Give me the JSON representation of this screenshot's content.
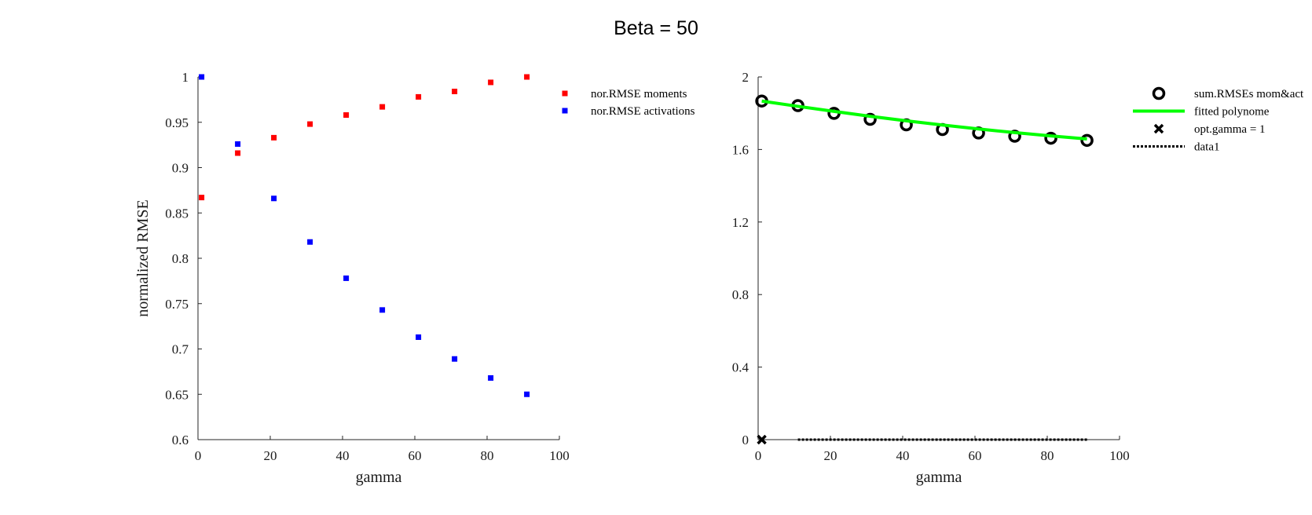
{
  "figure": {
    "suptitle": "Beta = 50"
  },
  "colors": {
    "moments": "#ff0000",
    "activations": "#0000ff",
    "fit": "#00ff00",
    "axis": "#262626"
  },
  "chart_data": [
    {
      "type": "scatter",
      "title": "",
      "xlabel": "gamma",
      "ylabel": "normalized RMSE",
      "xlim": [
        0,
        100
      ],
      "ylim": [
        0.6,
        1
      ],
      "xticks": [
        0,
        20,
        40,
        60,
        80,
        100
      ],
      "xtick_labels": [
        "0",
        "20",
        "40",
        "60",
        "80",
        "100"
      ],
      "yticks": [
        0.6,
        0.65,
        0.7,
        0.75,
        0.8,
        0.85,
        0.9,
        0.95,
        1
      ],
      "ytick_labels": [
        "0.6",
        "0.65",
        "0.7",
        "0.75",
        "0.8",
        "0.85",
        "0.9",
        "0.95",
        "1"
      ],
      "grid": false,
      "legend_position": "outside-right",
      "x": [
        1,
        11,
        21,
        31,
        41,
        51,
        61,
        71,
        81,
        91
      ],
      "series": [
        {
          "name": "nor.RMSE moments",
          "marker": "square",
          "color": "#ff0000",
          "values": [
            0.867,
            0.916,
            0.933,
            0.948,
            0.958,
            0.967,
            0.978,
            0.984,
            0.994,
            1.0
          ]
        },
        {
          "name": "nor.RMSE activations",
          "marker": "square",
          "color": "#0000ff",
          "values": [
            1.0,
            0.926,
            0.866,
            0.818,
            0.778,
            0.743,
            0.713,
            0.689,
            0.668,
            0.65
          ]
        }
      ]
    },
    {
      "type": "line",
      "title": "",
      "xlabel": "gamma",
      "ylabel": "",
      "xlim": [
        0,
        100
      ],
      "ylim": [
        0,
        2
      ],
      "xticks": [
        0,
        20,
        40,
        60,
        80,
        100
      ],
      "xtick_labels": [
        "0",
        "20",
        "40",
        "60",
        "80",
        "100"
      ],
      "yticks": [
        0,
        0.4,
        0.8,
        1.2,
        1.6,
        2
      ],
      "ytick_labels": [
        "0",
        "0.4",
        "0.8",
        "1.2",
        "1.6",
        "2"
      ],
      "grid": false,
      "legend_position": "outside-right",
      "x": [
        1,
        11,
        21,
        31,
        41,
        51,
        61,
        71,
        81,
        91
      ],
      "series": [
        {
          "name": "sum.RMSEs mom&act",
          "marker": "circle",
          "color": "#000000",
          "values": [
            1.867,
            1.842,
            1.799,
            1.766,
            1.736,
            1.71,
            1.691,
            1.673,
            1.662,
            1.65
          ]
        },
        {
          "name": "fitted polynome",
          "style": "line",
          "color": "#00ff00",
          "values": [
            1.867,
            1.838,
            1.81,
            1.783,
            1.758,
            1.735,
            1.713,
            1.693,
            1.675,
            1.658
          ]
        },
        {
          "name": "opt.gamma = 1",
          "marker": "x",
          "color": "#000000",
          "x": [
            1
          ],
          "values": [
            0
          ]
        },
        {
          "name": "data1",
          "style": "dotted",
          "color": "#000000",
          "x": [
            11,
            91
          ],
          "values": [
            0,
            0
          ]
        }
      ]
    }
  ]
}
